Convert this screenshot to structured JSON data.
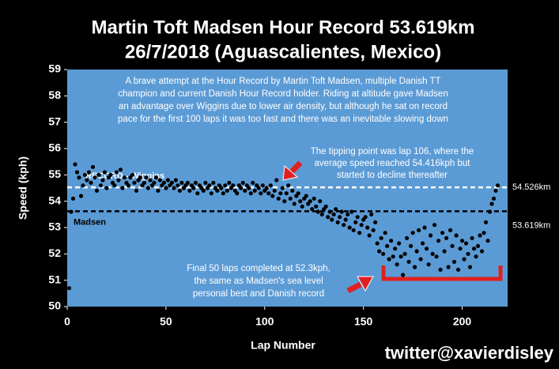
{
  "chart_data": {
    "type": "scatter",
    "title": [
      "Martin Toft Madsen Hour Record 53.619km",
      "26/7/2018 (Aguascalientes, Mexico)"
    ],
    "x_label": "Lap Number",
    "y_label": "Speed (kph)",
    "xlim": [
      0,
      223
    ],
    "ylim": [
      50,
      59
    ],
    "xticks": [
      0,
      50,
      100,
      150,
      200
    ],
    "yticks": [
      50,
      51,
      52,
      53,
      54,
      55,
      56,
      57,
      58,
      59
    ],
    "plot_background": "#5b9bd5",
    "color": "#000000",
    "x": [
      1,
      2,
      3,
      4,
      5,
      6,
      7,
      8,
      9,
      10,
      11,
      12,
      13,
      14,
      15,
      16,
      17,
      18,
      19,
      20,
      21,
      22,
      23,
      24,
      25,
      26,
      27,
      28,
      29,
      30,
      31,
      32,
      33,
      34,
      35,
      36,
      37,
      38,
      39,
      40,
      41,
      42,
      43,
      44,
      45,
      46,
      47,
      48,
      49,
      50,
      51,
      52,
      53,
      54,
      55,
      56,
      57,
      58,
      59,
      60,
      61,
      62,
      63,
      64,
      65,
      66,
      67,
      68,
      69,
      70,
      71,
      72,
      73,
      74,
      75,
      76,
      77,
      78,
      79,
      80,
      81,
      82,
      83,
      84,
      85,
      86,
      87,
      88,
      89,
      90,
      91,
      92,
      93,
      94,
      95,
      96,
      97,
      98,
      99,
      100,
      101,
      102,
      103,
      104,
      105,
      106,
      107,
      108,
      109,
      110,
      111,
      112,
      113,
      114,
      115,
      116,
      117,
      118,
      119,
      120,
      121,
      122,
      123,
      124,
      125,
      126,
      127,
      128,
      129,
      130,
      131,
      132,
      133,
      134,
      135,
      136,
      137,
      138,
      139,
      140,
      141,
      142,
      143,
      144,
      145,
      146,
      147,
      148,
      149,
      150,
      151,
      152,
      153,
      154,
      155,
      156,
      157,
      158,
      159,
      160,
      161,
      162,
      163,
      164,
      165,
      166,
      167,
      168,
      169,
      170,
      171,
      172,
      173,
      174,
      175,
      176,
      177,
      178,
      179,
      180,
      181,
      182,
      183,
      184,
      185,
      186,
      187,
      188,
      189,
      190,
      191,
      192,
      193,
      194,
      195,
      196,
      197,
      198,
      199,
      200,
      201,
      202,
      203,
      204,
      205,
      206,
      207,
      208,
      209,
      210,
      211,
      212,
      213,
      214,
      215,
      216,
      217,
      218
    ],
    "values": [
      50.7,
      53.6,
      54.1,
      55.4,
      55.1,
      54.9,
      54.2,
      54.6,
      55.0,
      54.8,
      55.1,
      54.7,
      55.3,
      54.9,
      54.4,
      55.0,
      54.6,
      54.8,
      55.1,
      54.5,
      54.9,
      55.0,
      54.7,
      54.6,
      55.1,
      54.8,
      55.2,
      54.5,
      54.9,
      54.7,
      54.6,
      54.9,
      55.0,
      54.7,
      54.4,
      54.8,
      54.9,
      54.6,
      54.7,
      54.9,
      54.5,
      54.8,
      54.6,
      54.7,
      54.9,
      54.4,
      54.8,
      54.6,
      54.7,
      54.5,
      54.8,
      54.6,
      54.7,
      54.5,
      54.8,
      54.6,
      54.4,
      54.7,
      54.5,
      54.6,
      54.7,
      54.4,
      54.6,
      54.5,
      54.7,
      54.3,
      54.6,
      54.5,
      54.4,
      54.7,
      54.5,
      54.6,
      54.3,
      54.7,
      54.5,
      54.4,
      54.6,
      54.5,
      54.3,
      54.6,
      54.4,
      54.7,
      54.5,
      54.6,
      54.4,
      54.3,
      54.6,
      54.5,
      54.7,
      54.4,
      54.6,
      54.5,
      54.3,
      54.7,
      54.4,
      54.6,
      54.5,
      54.3,
      54.6,
      54.4,
      54.5,
      54.3,
      54.6,
      54.2,
      54.4,
      54.8,
      54.1,
      54.3,
      54.5,
      54.0,
      54.3,
      54.6,
      54.1,
      54.4,
      53.9,
      54.2,
      54.3,
      54.0,
      53.8,
      54.1,
      54.2,
      53.9,
      54.0,
      53.7,
      54.1,
      53.8,
      53.6,
      54.0,
      53.5,
      53.7,
      53.8,
      53.4,
      53.6,
      53.3,
      53.5,
      53.7,
      53.2,
      53.4,
      53.6,
      53.1,
      53.3,
      53.5,
      53.0,
      53.6,
      52.9,
      53.2,
      53.4,
      52.8,
      53.1,
      53.3,
      53.4,
      53.0,
      52.7,
      53.5,
      52.9,
      53.2,
      52.4,
      52.1,
      52.6,
      52.0,
      52.8,
      52.3,
      51.8,
      52.5,
      51.9,
      52.2,
      51.6,
      52.4,
      51.9,
      51.2,
      52.0,
      52.6,
      51.7,
      52.3,
      52.8,
      51.5,
      52.1,
      52.9,
      51.8,
      52.4,
      53.0,
      52.2,
      51.6,
      52.7,
      52.0,
      53.1,
      51.9,
      52.5,
      51.4,
      52.8,
      52.1,
      52.6,
      51.5,
      52.9,
      52.3,
      51.7,
      52.7,
      51.4,
      52.2,
      52.5,
      51.8,
      52.4,
      52.0,
      51.5,
      52.6,
      52.2,
      51.9,
      52.3,
      52.7,
      52.1,
      52.8,
      53.2,
      52.5,
      53.6,
      53.9,
      54.1,
      54.4,
      54.6
    ],
    "reference_lines": [
      {
        "name": "RECORD - Wiggins",
        "value": 54.526,
        "label": "54.526km",
        "color": "#ffffff"
      },
      {
        "name": "Madsen",
        "value": 53.619,
        "label": "53.619km",
        "color": "#000000"
      }
    ],
    "annotations": [
      [
        "A brave attempt at the Hour Record by Martin Toft Madsen, multiple Danish TT",
        "champion and current Danish Hour Record holder. Riding at altitude gave Madsen",
        "an advantage over Wiggins due to lower air density, but although he sat on record",
        "pace for the first 100 laps it was too fast and there was an inevitable slowing down"
      ],
      [
        "The tipping point was lap 106, where the",
        "average speed reached 54.416kph but",
        "started to decline thereafter"
      ],
      [
        "Final 50 laps completed at 52.3kph,",
        "the same as Madsen's sea level",
        "personal best and Danish record"
      ]
    ],
    "credit": "twitter@xavierdisley"
  }
}
